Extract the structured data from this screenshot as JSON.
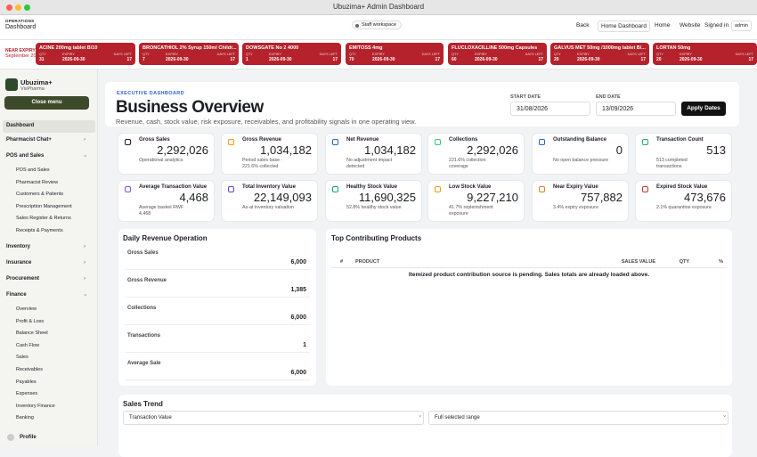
{
  "window": {
    "title": "Ubuzima+ Admin Dashboard"
  },
  "header": {
    "section": "OPERATIONS",
    "page": "Dashboard",
    "workspace": "Staff workspace",
    "nav": [
      "Back",
      "Home Dashboard",
      "Home",
      "Website"
    ],
    "signed_in": "Signed in",
    "user": "admin"
  },
  "ticker": {
    "label": "NEAR EXPIRY",
    "period": "September 2026",
    "qty_label": "QTY",
    "expiry_label": "EXPIRY",
    "days_label": "DAYS LEFT",
    "items": [
      {
        "name": "ACINE 200mg tablet B/10",
        "qty": "31",
        "expiry": "2026-09-30",
        "days": "17"
      },
      {
        "name": "BRONCATHIOL 2% Syrup 150ml Childr...",
        "qty": "7",
        "expiry": "2026-09-30",
        "days": "17"
      },
      {
        "name": "DOWSGATE No 2 4000",
        "qty": "1",
        "expiry": "2026-09-30",
        "days": "17"
      },
      {
        "name": "EMITOSS 4mg",
        "qty": "70",
        "expiry": "2026-09-30",
        "days": "17"
      },
      {
        "name": "FLUCLOXACILLINE 500mg Capsules",
        "qty": "60",
        "expiry": "2026-09-30",
        "days": "17"
      },
      {
        "name": "GALVUS MET 50mg /1000mg tablet B/...",
        "qty": "20",
        "expiry": "2026-09-30",
        "days": "17"
      },
      {
        "name": "LORTAN 50mg",
        "qty": "20",
        "expiry": "2026-09-30",
        "days": "17"
      }
    ]
  },
  "sidebar": {
    "brand": "Ubuzima+",
    "org": "VisPharma",
    "close": "Close menu",
    "profile": "Profile",
    "items": [
      {
        "label": "Dashboard"
      },
      {
        "label": "Pharmacist Chat+"
      },
      {
        "label": "POS and Sales",
        "children": [
          "POS and Sales",
          "Pharmacist Review",
          "Customers & Patients",
          "Prescription Management",
          "Sales Register & Returns",
          "Receipts & Payments"
        ]
      },
      {
        "label": "Inventory"
      },
      {
        "label": "Insurance"
      },
      {
        "label": "Procurement"
      },
      {
        "label": "Finance",
        "children": [
          "Overview",
          "Profit & Loss",
          "Balance Sheet",
          "Cash Flow",
          "Sales",
          "Receivables",
          "Payables",
          "Expenses",
          "Inventory Finance",
          "Banking"
        ]
      }
    ]
  },
  "overview": {
    "eyebrow": "EXECUTIVE DASHBOARD",
    "title": "Business Overview",
    "subtitle": "Revenue, cash, stock value, risk exposure, receivables, and profitability signals in one operating view.",
    "start_label": "START DATE",
    "start": "31/08/2026",
    "end_label": "END DATE",
    "end": "13/09/2026",
    "apply": "Apply Dates"
  },
  "kpis": [
    {
      "label": "Gross Sales",
      "value": "2,292,026",
      "note": "Operational analytics"
    },
    {
      "label": "Gross Revenue",
      "value": "1,034,182",
      "note": "Period sales base · 221.6% collected"
    },
    {
      "label": "Net Revenue",
      "value": "1,034,182",
      "note": "No adjustment impact detected"
    },
    {
      "label": "Collections",
      "value": "2,292,026",
      "note": "221.6% collection coverage"
    },
    {
      "label": "Outstanding Balance",
      "value": "0",
      "note": "No open balance pressure"
    },
    {
      "label": "Transaction Count",
      "value": "513",
      "note": "513 completed transactions"
    },
    {
      "label": "Average Transaction Value",
      "value": "4,468",
      "note": "Average basket RWF 4,468"
    },
    {
      "label": "Total Inventory Value",
      "value": "22,149,093",
      "note": "As-at inventory valuation"
    },
    {
      "label": "Healthy Stock Value",
      "value": "11,690,325",
      "note": "52.8% healthy stock value"
    },
    {
      "label": "Low Stock Value",
      "value": "9,227,210",
      "note": "41.7% replenishment exposure"
    },
    {
      "label": "Near Expiry Value",
      "value": "757,882",
      "note": "3.4% expiry exposure"
    },
    {
      "label": "Expired Stock Value",
      "value": "473,676",
      "note": "2.1% quarantine exposure"
    }
  ],
  "daily": {
    "title": "Daily Revenue Operation",
    "rows": [
      {
        "label": "Gross Sales",
        "value": "6,000"
      },
      {
        "label": "Gross Revenue",
        "value": "1,385"
      },
      {
        "label": "Collections",
        "value": "6,000"
      },
      {
        "label": "Transactions",
        "value": "1"
      },
      {
        "label": "Average Sale",
        "value": "6,000"
      }
    ]
  },
  "products": {
    "title": "Top Contributing Products",
    "columns": [
      "#",
      "PRODUCT",
      "SALES VALUE",
      "QTY",
      "%"
    ],
    "message": "Itemized product contribution source is pending. Sales totals are already loaded above."
  },
  "trend": {
    "title": "Sales Trend",
    "metric": "Transaction Value",
    "range": "Full selected range"
  }
}
